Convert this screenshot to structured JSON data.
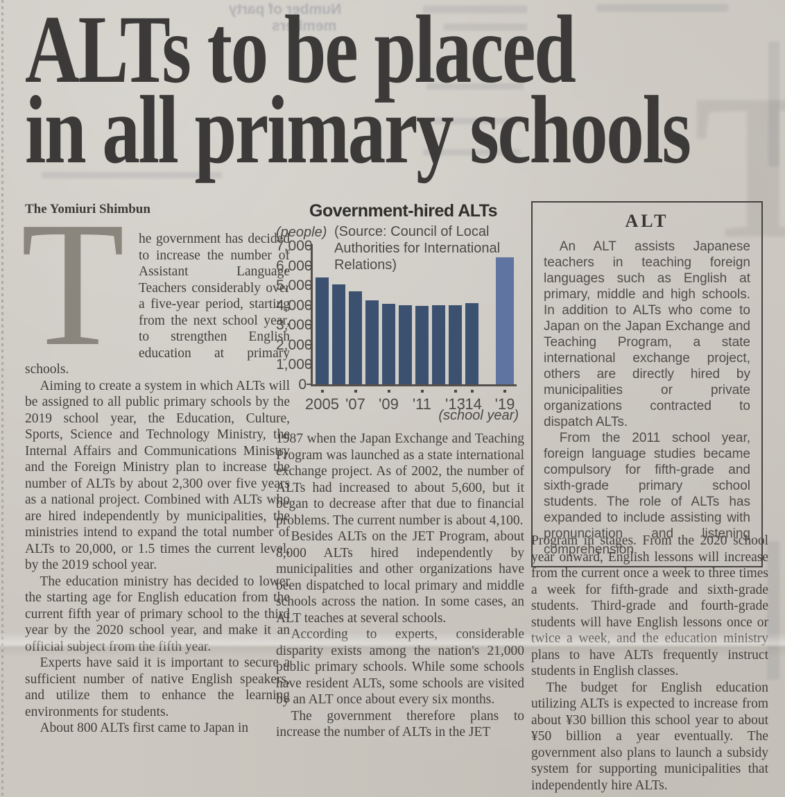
{
  "headline": {
    "line1": "ALTs to be placed",
    "line2": "in all primary schools"
  },
  "byline": "The Yomiuri Shimbun",
  "article": {
    "col1": {
      "dropcap": "T",
      "p1_rest": "he government has decided to increase the number of Assistant Language Teachers considerably over a five-year period, starting from the next school year, to strengthen English education at primary schools.",
      "p2": "Aiming to create a system in which ALTs will be assigned to all public primary schools by the 2019 school year, the Education, Culture, Sports, Science and Technology Ministry, the Internal Affairs and Communications Ministry and the Foreign Ministry plan to increase the number of ALTs by about 2,300 over five years as a national project. Combined with ALTs who are hired independently by municipalities, the ministries intend to expand the total number of ALTs to 20,000, or 1.5 times the current level, by the 2019 school year.",
      "p3": "The education ministry has decided to lower the starting age for English education from the current fifth year of primary school to the third year by the 2020 school year, and make it an official subject from the fifth year.",
      "p4": "Experts have said it is important to secure a sufficient number of native English speakers, and utilize them to enhance the learning environments for students.",
      "p5": "About 800 ALTs first came to Japan in"
    },
    "col2": {
      "p1": "1987 when the Japan Exchange and Teaching Program was launched as a state international exchange project. As of 2002, the number of ALTs had increased to about 5,600, but it began to decrease after that due to financial problems. The current number is about 4,100.",
      "p2": "Besides ALTs on the JET Program, about 8,000 ALTs hired independently by municipalities and other organizations have been dispatched to local primary and middle schools across the nation. In some cases, an ALT teaches at several schools.",
      "p3": "According to experts, considerable disparity exists among the nation's 21,000 public primary schools. While some schools have resident ALTs, some schools are visited by an ALT once about every six months.",
      "p4": "The government therefore plans to increase the number of ALTs in the JET"
    },
    "col3": {
      "p1": "Program in stages. From the 2020 school year onward, English lessons will increase from the current once a week to three times a week for fifth-grade and sixth-grade students. Third-grade and fourth-grade students will have English lessons once or twice a week, and the education ministry plans to have ALTs frequently instruct students in English classes.",
      "p2": "The budget for English education utilizing ALTs is expected to increase from about ¥30 billion this school year to about ¥50 billion a year eventually. The government also plans to launch a subsidy system for supporting municipalities that independently hire ALTs."
    }
  },
  "alt_box": {
    "title": "ALT",
    "p1": "An ALT assists Japanese teachers in teaching foreign languages such as English at primary, middle and high schools. In addition to ALTs who come to Japan on the Japan Exchange and Teaching Program, a state international exchange project, others are directly hired by municipalities or private organizations contracted to dispatch ALTs.",
    "p2": "From the 2011 school year, foreign language studies became compulsory for fifth-grade and sixth-grade primary school students. The role of ALTs has expanded to include assisting with pronunciation and listening comprehension."
  },
  "chart_data": {
    "type": "bar",
    "title": "Government-hired ALTs",
    "unit_label": "(people)",
    "source": "(Source: Council of Local Authorities for International Relations)",
    "x_axis_note": "(school year)",
    "categories": [
      "2005",
      "2006",
      "2007",
      "2008",
      "2009",
      "2010",
      "2011",
      "2012",
      "2013",
      "2014",
      "2019"
    ],
    "values": [
      5400,
      5050,
      4700,
      4250,
      4050,
      4000,
      3950,
      4000,
      4000,
      4100,
      6400
    ],
    "ylim": [
      0,
      7000
    ],
    "ytick_labels": [
      "7,000",
      "6,000",
      "5,000",
      "4,000",
      "3,000",
      "2,000",
      "1,000",
      "0"
    ],
    "xticks": [
      {
        "index": 0,
        "label": "2005"
      },
      {
        "index": 2,
        "label": "'07"
      },
      {
        "index": 4,
        "label": "'09"
      },
      {
        "index": 6,
        "label": "'11"
      },
      {
        "index": 8,
        "label": "'13"
      },
      {
        "index": 9,
        "label": "'14"
      },
      {
        "index": 10,
        "label": "'19"
      }
    ],
    "bar_color": "#3c5170",
    "projected_bar_color": "#5f74a0",
    "projected_index": 10,
    "grid": false,
    "legend": "none"
  },
  "ghost": {
    "top_left_line1": "Number of party",
    "top_left_line2": "members",
    "big_letter": "T"
  }
}
